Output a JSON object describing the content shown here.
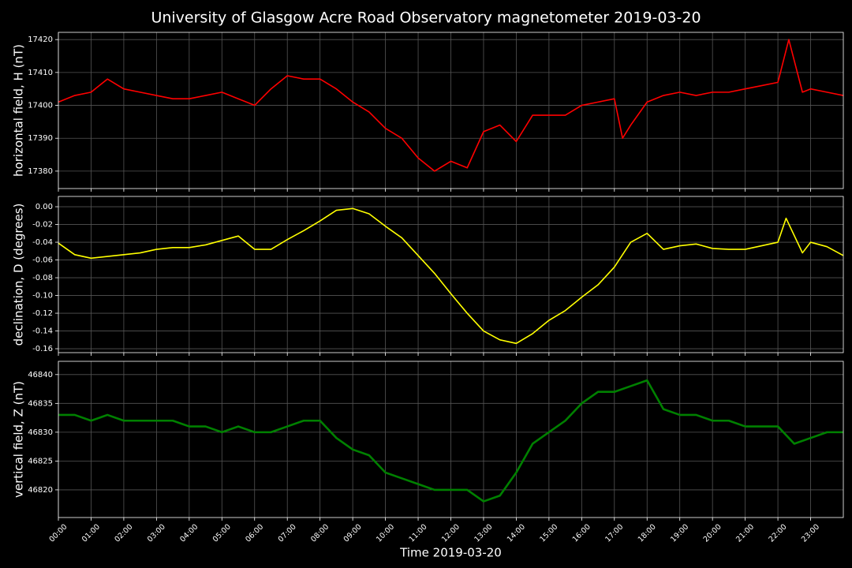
{
  "title": "University of Glasgow Acre Road Observatory magnetometer 2019-03-20",
  "chart_data": [
    {
      "type": "line",
      "ylabel": "horizontal field, H (nT)",
      "color": "#ff0000",
      "grid": true,
      "x": [
        "00:00",
        "00:30",
        "01:00",
        "01:30",
        "02:00",
        "02:30",
        "03:00",
        "03:30",
        "04:00",
        "04:30",
        "05:00",
        "05:30",
        "06:00",
        "06:30",
        "07:00",
        "07:30",
        "08:00",
        "08:30",
        "09:00",
        "09:30",
        "10:00",
        "10:30",
        "11:00",
        "11:30",
        "12:00",
        "12:30",
        "13:00",
        "13:30",
        "14:00",
        "14:30",
        "15:00",
        "15:30",
        "16:00",
        "16:30",
        "17:00",
        "17:15",
        "17:30",
        "18:00",
        "18:30",
        "19:00",
        "19:30",
        "20:00",
        "20:30",
        "21:00",
        "21:30",
        "22:00",
        "22:20",
        "22:45",
        "23:00",
        "23:30",
        "24:00"
      ],
      "values": [
        17401,
        17403,
        17404,
        17408,
        17405,
        17404,
        17403,
        17402,
        17402,
        17403,
        17404,
        17402,
        17400,
        17405,
        17409,
        17408,
        17408,
        17405,
        17401,
        17398,
        17393,
        17390,
        17384,
        17380,
        17383,
        17381,
        17392,
        17394,
        17389,
        17397,
        17397,
        17397,
        17400,
        17401,
        17402,
        17390,
        17394,
        17401,
        17403,
        17404,
        17403,
        17404,
        17404,
        17405,
        17406,
        17407,
        17420,
        17404,
        17405,
        17404,
        17403
      ],
      "xlim": [
        "00:00",
        "24:00"
      ],
      "xticks": [
        "00:00",
        "01:00",
        "02:00",
        "03:00",
        "04:00",
        "05:00",
        "06:00",
        "07:00",
        "08:00",
        "09:00",
        "10:00",
        "11:00",
        "12:00",
        "13:00",
        "14:00",
        "15:00",
        "16:00",
        "17:00",
        "18:00",
        "19:00",
        "20:00",
        "21:00",
        "22:00",
        "23:00"
      ],
      "ylim": [
        17374.7,
        17422.2
      ],
      "yticks": [
        17380,
        17390,
        17400,
        17410,
        17420
      ]
    },
    {
      "type": "line",
      "ylabel": "declination, D (degrees)",
      "color": "#ffff00",
      "grid": true,
      "x": [
        "00:00",
        "00:30",
        "01:00",
        "01:30",
        "02:00",
        "02:30",
        "03:00",
        "03:30",
        "04:00",
        "04:30",
        "05:00",
        "05:30",
        "06:00",
        "06:30",
        "07:00",
        "07:30",
        "08:00",
        "08:30",
        "09:00",
        "09:30",
        "10:00",
        "10:30",
        "11:00",
        "11:30",
        "12:00",
        "12:30",
        "13:00",
        "13:30",
        "14:00",
        "14:30",
        "15:00",
        "15:30",
        "16:00",
        "16:30",
        "17:00",
        "17:30",
        "18:00",
        "18:30",
        "19:00",
        "19:30",
        "20:00",
        "20:30",
        "21:00",
        "21:30",
        "22:00",
        "22:15",
        "22:45",
        "23:00",
        "23:30",
        "24:00"
      ],
      "values": [
        -0.041,
        -0.054,
        -0.058,
        -0.056,
        -0.054,
        -0.052,
        -0.048,
        -0.046,
        -0.046,
        -0.043,
        -0.038,
        -0.033,
        -0.048,
        -0.048,
        -0.037,
        -0.027,
        -0.016,
        -0.004,
        -0.002,
        -0.008,
        -0.022,
        -0.035,
        -0.055,
        -0.075,
        -0.098,
        -0.12,
        -0.14,
        -0.15,
        -0.154,
        -0.143,
        -0.128,
        -0.117,
        -0.102,
        -0.088,
        -0.068,
        -0.04,
        -0.03,
        -0.048,
        -0.044,
        -0.042,
        -0.047,
        -0.048,
        -0.048,
        -0.044,
        -0.04,
        -0.013,
        -0.052,
        -0.04,
        -0.045,
        -0.055
      ],
      "xlim": [
        "00:00",
        "24:00"
      ],
      "xticks": [
        "00:00",
        "01:00",
        "02:00",
        "03:00",
        "04:00",
        "05:00",
        "06:00",
        "07:00",
        "08:00",
        "09:00",
        "10:00",
        "11:00",
        "12:00",
        "13:00",
        "14:00",
        "15:00",
        "16:00",
        "17:00",
        "18:00",
        "19:00",
        "20:00",
        "21:00",
        "22:00",
        "23:00"
      ],
      "ylim": [
        -0.1644,
        0.0116
      ],
      "yticks": [
        {
          "value": -0.16,
          "label": "-0.16"
        },
        {
          "value": -0.14,
          "label": "-0.14"
        },
        {
          "value": -0.12,
          "label": "-0.12"
        },
        {
          "value": -0.1,
          "label": "-0.10"
        },
        {
          "value": -0.08,
          "label": "-0.08"
        },
        {
          "value": -0.06,
          "label": "-0.06"
        },
        {
          "value": -0.04,
          "label": "-0.04"
        },
        {
          "value": -0.02,
          "label": "-0.02"
        },
        {
          "value": 0,
          "label": "0.00"
        }
      ]
    },
    {
      "type": "line",
      "ylabel": "vertical field, Z (nT)",
      "xlabel": "Time 2019-03-20",
      "color": "#008000",
      "grid": true,
      "x": [
        "00:00",
        "00:30",
        "01:00",
        "01:30",
        "02:00",
        "02:30",
        "03:00",
        "03:30",
        "04:00",
        "04:30",
        "05:00",
        "05:30",
        "06:00",
        "06:30",
        "07:00",
        "07:30",
        "08:00",
        "08:30",
        "09:00",
        "09:30",
        "10:00",
        "10:30",
        "11:00",
        "11:30",
        "12:00",
        "12:30",
        "13:00",
        "13:30",
        "14:00",
        "14:30",
        "15:00",
        "15:30",
        "16:00",
        "16:30",
        "17:00",
        "17:30",
        "18:00",
        "18:30",
        "19:00",
        "19:30",
        "20:00",
        "20:30",
        "21:00",
        "21:30",
        "22:00",
        "22:30",
        "23:00",
        "23:30",
        "24:00"
      ],
      "values": [
        46833,
        46833,
        46832,
        46833,
        46832,
        46832,
        46832,
        46832,
        46831,
        46831,
        46830,
        46831,
        46830,
        46830,
        46831,
        46832,
        46832,
        46829,
        46827,
        46826,
        46823,
        46822,
        46821,
        46820,
        46820,
        46820,
        46818,
        46819,
        46823,
        46828,
        46830,
        46832,
        46835,
        46837,
        46837,
        46838,
        46839,
        46834,
        46833,
        46833,
        46832,
        46832,
        46831,
        46831,
        46831,
        46828,
        46829,
        46830,
        46830
      ],
      "xlim": [
        "00:00",
        "24:00"
      ],
      "xticks": [
        "00:00",
        "01:00",
        "02:00",
        "03:00",
        "04:00",
        "05:00",
        "06:00",
        "07:00",
        "08:00",
        "09:00",
        "10:00",
        "11:00",
        "12:00",
        "13:00",
        "14:00",
        "15:00",
        "16:00",
        "17:00",
        "18:00",
        "19:00",
        "20:00",
        "21:00",
        "22:00",
        "23:00"
      ],
      "ylim": [
        46815.2,
        46842.3
      ],
      "yticks": [
        46820,
        46825,
        46830,
        46835,
        46840
      ]
    }
  ]
}
